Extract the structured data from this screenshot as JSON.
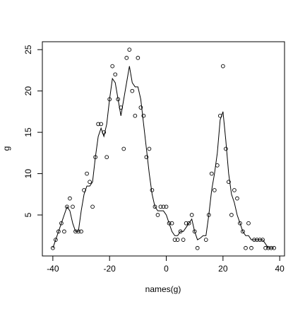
{
  "chart_data": {
    "type": "scatter",
    "xlabel": "names(g)",
    "ylabel": "g",
    "x": [
      -40,
      -39,
      -38,
      -37,
      -36,
      -35,
      -34,
      -33,
      -32,
      -31,
      -30,
      -29,
      -28,
      -27,
      -26,
      -25,
      -24,
      -23,
      -22,
      -21,
      -20,
      -19,
      -18,
      -17,
      -16,
      -15,
      -14,
      -13,
      -12,
      -11,
      -10,
      -9,
      -8,
      -7,
      -6,
      -5,
      -4,
      -3,
      -2,
      -1,
      0,
      1,
      2,
      3,
      4,
      5,
      6,
      7,
      8,
      9,
      10,
      11,
      12,
      13,
      14,
      15,
      16,
      17,
      18,
      19,
      20,
      21,
      22,
      23,
      24,
      25,
      26,
      27,
      28,
      29,
      30,
      31,
      32,
      33,
      34,
      35,
      36,
      37,
      38
    ],
    "series": [
      {
        "style": "points",
        "color": "#000000",
        "values": [
          1,
          2,
          3,
          4,
          3,
          6,
          7,
          6,
          3,
          3,
          3,
          8,
          10,
          9,
          6,
          12,
          16,
          16,
          15,
          12,
          19,
          23,
          22,
          19,
          18,
          13,
          24,
          25,
          20,
          17,
          24,
          18,
          17,
          12,
          13,
          8,
          6,
          5,
          6,
          6,
          6,
          4,
          4,
          2,
          2,
          3,
          2,
          4,
          4,
          5,
          3,
          1,
          null,
          null,
          2,
          5,
          10,
          8,
          11,
          17,
          23,
          13,
          9,
          5,
          8,
          7,
          4,
          3,
          1,
          4,
          1,
          2,
          2,
          2,
          2,
          1,
          1,
          1,
          1
        ]
      },
      {
        "style": "line",
        "color": "#000000",
        "values": [
          1,
          2,
          3,
          4,
          5,
          6,
          5.5,
          4,
          3,
          3,
          5.5,
          7.5,
          8.5,
          8.5,
          9,
          12,
          14.5,
          15.5,
          14.5,
          16,
          19,
          21.5,
          21,
          19,
          17,
          19,
          21,
          23,
          21,
          20.5,
          20.5,
          19,
          16,
          13,
          10,
          7.5,
          6,
          5.5,
          5.5,
          5.5,
          5,
          4,
          3,
          2.5,
          2.5,
          3,
          3,
          3.5,
          4,
          4.5,
          3,
          2,
          2.2,
          2.5,
          2.5,
          5,
          8,
          10,
          12.5,
          16.5,
          17.5,
          14,
          10,
          7.5,
          6.5,
          5,
          4,
          3,
          2.5,
          2.5,
          2,
          2,
          2,
          2,
          2,
          1.5,
          1,
          1,
          1
        ]
      }
    ],
    "xlim": [
      -43.7,
      41.7
    ],
    "ylim": [
      0.04,
      25.96
    ],
    "xticks": [
      -40,
      -20,
      0,
      20,
      40
    ],
    "yticks": [
      5,
      10,
      15,
      20,
      25
    ]
  }
}
